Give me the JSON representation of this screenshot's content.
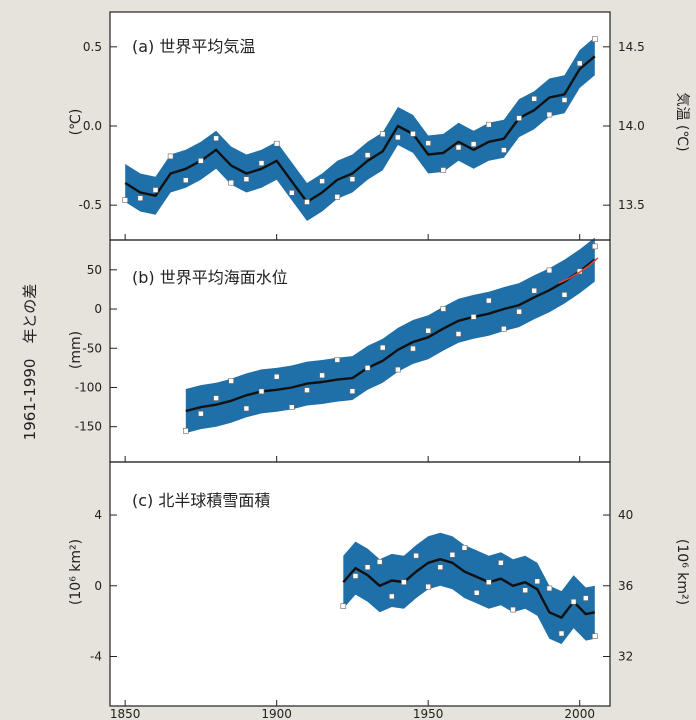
{
  "figure": {
    "left_title": "1961-1990　年との差"
  },
  "chart_data": [
    {
      "type": "line",
      "title": "(a) 世界平均気温",
      "ylabel": "(℃)",
      "ylabel_right": "気温 (℃)",
      "xlim": [
        1845,
        2010
      ],
      "ylim": [
        -0.72,
        0.72
      ],
      "yticks": [
        -0.5,
        0.0,
        0.5
      ],
      "ytick_labels": [
        "-0.5",
        "0.0",
        "0.5"
      ],
      "right_ticks": [
        13.5,
        14.0,
        14.5
      ],
      "right_tick_labels": [
        "13.5",
        "14.0",
        "14.5"
      ],
      "right_offset": 14.0,
      "band_halfwidth": 0.12,
      "colors": {
        "band": "#1f6fa8",
        "line": "#111111",
        "points": "#ffffff"
      },
      "series": [
        {
          "x": [
            1850,
            1855,
            1860,
            1865,
            1870,
            1875,
            1880,
            1885,
            1890,
            1895,
            1900,
            1905,
            1910,
            1915,
            1920,
            1925,
            1930,
            1935,
            1940,
            1945,
            1950,
            1955,
            1960,
            1965,
            1970,
            1975,
            1980,
            1985,
            1990,
            1995,
            2000,
            2005
          ],
          "values": [
            -0.36,
            -0.42,
            -0.44,
            -0.3,
            -0.27,
            -0.22,
            -0.15,
            -0.25,
            -0.3,
            -0.27,
            -0.22,
            -0.35,
            -0.48,
            -0.42,
            -0.34,
            -0.3,
            -0.22,
            -0.16,
            0.0,
            -0.05,
            -0.18,
            -0.17,
            -0.1,
            -0.15,
            -0.1,
            -0.08,
            0.05,
            0.1,
            0.18,
            0.2,
            0.36,
            0.44
          ]
        }
      ]
    },
    {
      "type": "line",
      "title": "(b) 世界平均海面水位",
      "ylabel": "(mm)",
      "xlim": [
        1845,
        2010
      ],
      "ylim": [
        -195,
        88
      ],
      "yticks": [
        -150,
        -100,
        -50,
        0,
        50
      ],
      "ytick_labels": [
        "-150",
        "-100",
        "-50",
        "0",
        "50"
      ],
      "band_halfwidth": 28,
      "colors": {
        "band": "#1f6fa8",
        "line": "#111111",
        "points": "#ffffff",
        "satellite": "#e0453a"
      },
      "series": [
        {
          "x": [
            1870,
            1875,
            1880,
            1885,
            1890,
            1895,
            1900,
            1905,
            1910,
            1915,
            1920,
            1925,
            1930,
            1935,
            1940,
            1945,
            1950,
            1955,
            1960,
            1965,
            1970,
            1975,
            1980,
            1985,
            1990,
            1995,
            2000,
            2005
          ],
          "values": [
            -130,
            -125,
            -122,
            -117,
            -110,
            -105,
            -103,
            -100,
            -95,
            -93,
            -90,
            -88,
            -75,
            -66,
            -52,
            -42,
            -36,
            -25,
            -15,
            -10,
            -6,
            0,
            5,
            15,
            24,
            35,
            48,
            63
          ]
        },
        {
          "x": [
            1993,
            1997,
            2000,
            2003,
            2006
          ],
          "values": [
            33,
            40,
            47,
            55,
            65
          ]
        }
      ]
    },
    {
      "type": "line",
      "title": "(c) 北半球積雪面積",
      "ylabel": "(10⁶ km²)",
      "ylabel_right": "(10⁶ km²)",
      "xlim": [
        1845,
        2010
      ],
      "ylim": [
        -6.8,
        7.0
      ],
      "yticks": [
        -4,
        0,
        4
      ],
      "ytick_labels": [
        "-4",
        "0",
        "4"
      ],
      "right_ticks": [
        32,
        36,
        40
      ],
      "right_tick_labels": [
        "32",
        "36",
        "40"
      ],
      "right_offset": 36.0,
      "band_halfwidth": 1.5,
      "xticks": [
        1850,
        1900,
        1950,
        2000
      ],
      "xtick_labels": [
        "1850",
        "1900",
        "1950",
        "2000"
      ],
      "colors": {
        "band": "#1f6fa8",
        "line": "#111111",
        "points": "#ffffff"
      },
      "series": [
        {
          "x": [
            1922,
            1926,
            1930,
            1934,
            1938,
            1942,
            1946,
            1950,
            1954,
            1958,
            1962,
            1966,
            1970,
            1974,
            1978,
            1982,
            1986,
            1990,
            1994,
            1998,
            2002,
            2005
          ],
          "values": [
            0.2,
            1.0,
            0.6,
            0.0,
            0.3,
            0.2,
            0.8,
            1.3,
            1.5,
            1.3,
            0.8,
            0.5,
            0.2,
            0.4,
            0.0,
            0.2,
            -0.2,
            -1.5,
            -1.8,
            -0.9,
            -1.6,
            -1.5
          ]
        }
      ]
    }
  ]
}
